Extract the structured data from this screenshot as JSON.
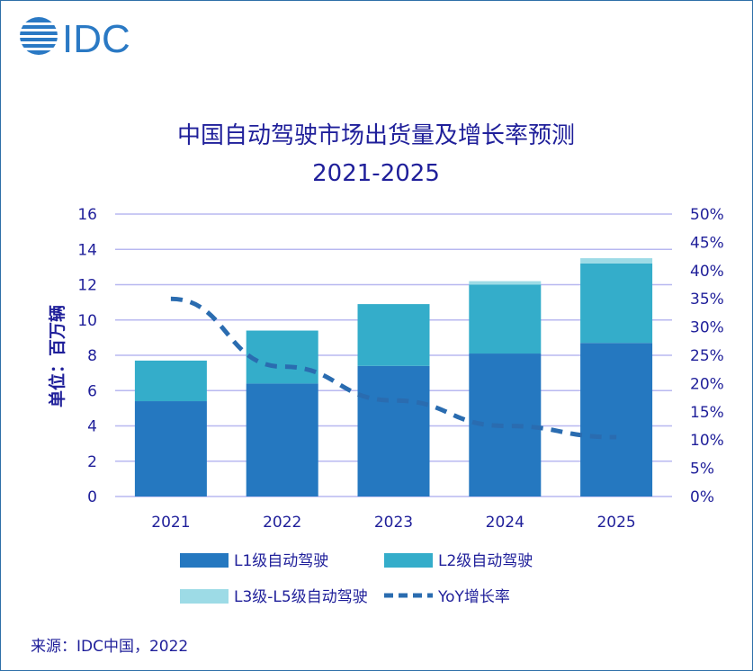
{
  "logo": {
    "text": "IDC"
  },
  "source_text": "来源：IDC中国，2022",
  "colors": {
    "l1": "#2578c0",
    "l2": "#34adca",
    "l3": "#9ddbe6",
    "yoy": "#2a6cb0",
    "grid": "#b8b8f0",
    "text": "#1f1f9a"
  },
  "chart_data": {
    "type": "bar",
    "stacked": true,
    "title": "中国自动驾驶市场出货量及增长率预测",
    "subtitle": "2021-2025",
    "ylabel": "单位：百万辆",
    "categories": [
      "2021",
      "2022",
      "2023",
      "2024",
      "2025"
    ],
    "ylim": [
      0,
      16
    ],
    "yticks": [
      0,
      2,
      4,
      6,
      8,
      10,
      12,
      14,
      16
    ],
    "y2lim": [
      0,
      50
    ],
    "y2ticks": [
      "0%",
      "5%",
      "10%",
      "15%",
      "20%",
      "25%",
      "30%",
      "35%",
      "40%",
      "45%",
      "50%"
    ],
    "y2values": [
      0,
      5,
      10,
      15,
      20,
      25,
      30,
      35,
      40,
      45,
      50
    ],
    "grid": true,
    "legend_position": "bottom",
    "series": [
      {
        "name": "L1级自动驾驶",
        "kind": "bar",
        "values": [
          5.4,
          6.4,
          7.4,
          8.1,
          8.7
        ]
      },
      {
        "name": "L2级自动驾驶",
        "kind": "bar",
        "values": [
          2.3,
          3.0,
          3.5,
          3.9,
          4.5
        ]
      },
      {
        "name": "L3级-L5级自动驾驶",
        "kind": "bar",
        "values": [
          0,
          0,
          0,
          0.2,
          0.3
        ]
      },
      {
        "name": "YoY增长率",
        "kind": "line",
        "axis": "right",
        "values": [
          35,
          23,
          17,
          12.5,
          10.5
        ]
      }
    ]
  }
}
